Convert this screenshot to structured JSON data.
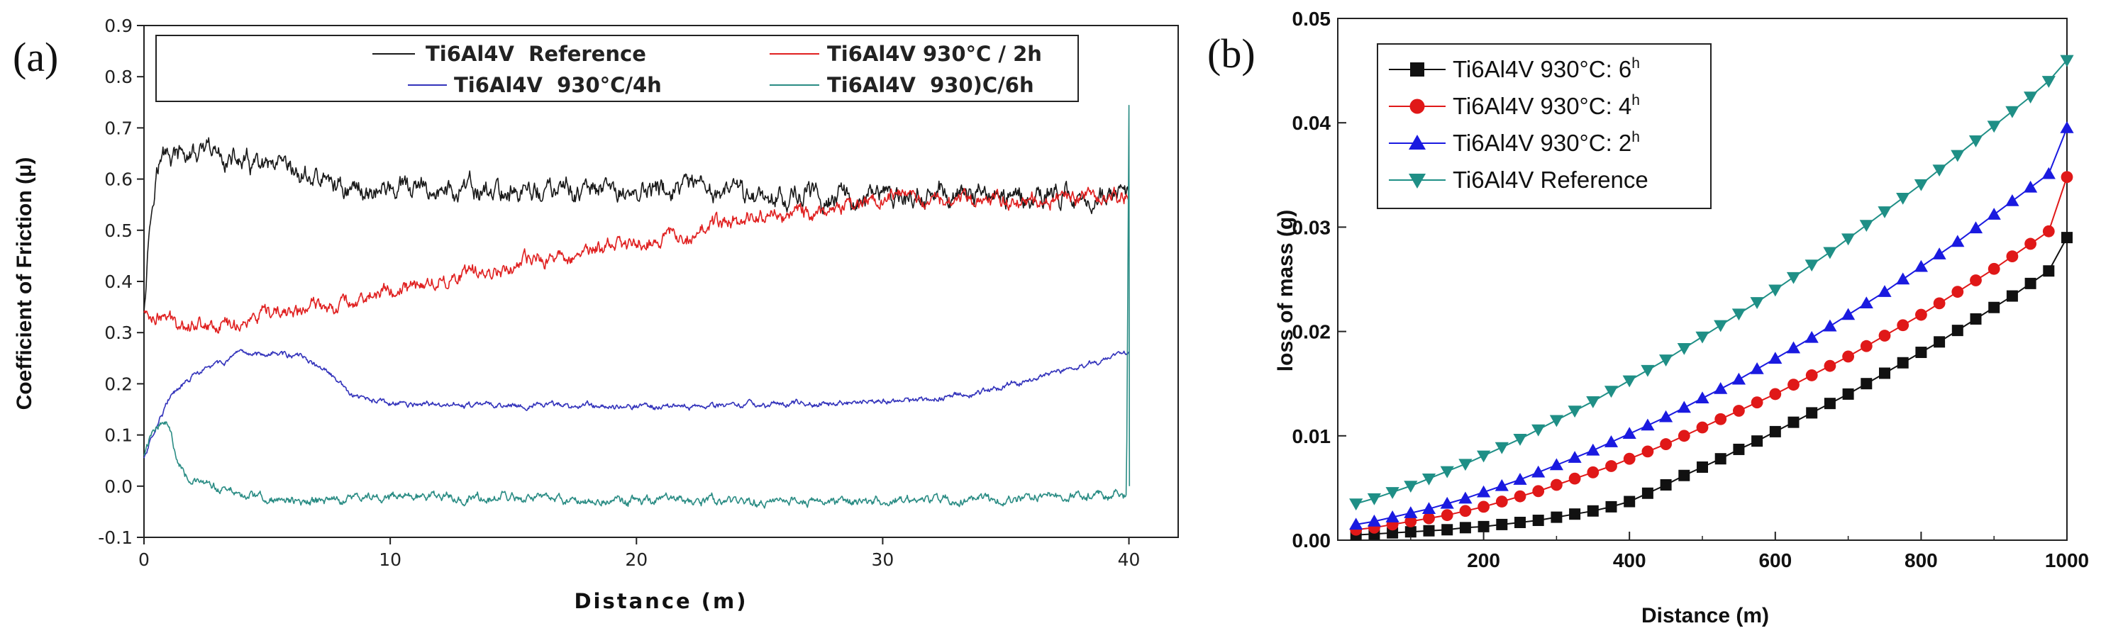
{
  "chart_data": [
    {
      "panel": "(a)",
      "type": "line",
      "title": "",
      "xlabel": "Distance (m)",
      "ylabel": "Coefficient of Friction (μ)",
      "xlim": [
        0,
        42
      ],
      "ylim": [
        -0.1,
        0.9
      ],
      "xticks": [
        0,
        10,
        20,
        30,
        40
      ],
      "xtick_labels": [
        "0",
        "10",
        "20",
        "30",
        "40"
      ],
      "yticks": [
        -0.1,
        0.0,
        0.1,
        0.2,
        0.3,
        0.4,
        0.5,
        0.6,
        0.7,
        0.8,
        0.9
      ],
      "ytick_labels": [
        "-0.1",
        "0.0",
        "0.1",
        "0.2",
        "0.3",
        "0.4",
        "0.5",
        "0.6",
        "0.7",
        "0.8",
        "0.9"
      ],
      "grid": false,
      "legend_position": "top",
      "series": [
        {
          "name": "Ti6Al4V  Reference",
          "color": "#1a1a1a",
          "noise": 0.013,
          "x": [
            0,
            0.2,
            0.5,
            0.8,
            1.2,
            2,
            3,
            4,
            5,
            6,
            7,
            8,
            9,
            10,
            12,
            15,
            18,
            20,
            22,
            25,
            28,
            30,
            32,
            35,
            38,
            40
          ],
          "y": [
            0.35,
            0.5,
            0.62,
            0.645,
            0.645,
            0.645,
            0.645,
            0.63,
            0.615,
            0.605,
            0.6,
            0.585,
            0.578,
            0.58,
            0.575,
            0.575,
            0.575,
            0.575,
            0.578,
            0.57,
            0.565,
            0.565,
            0.565,
            0.57,
            0.565,
            0.565
          ]
        },
        {
          "name": "Ti6Al4V 930°C / 2h",
          "color": "#e02020",
          "noise": 0.009,
          "x": [
            0,
            0.3,
            1,
            2,
            3,
            4,
            5,
            6,
            7,
            8,
            10,
            12,
            15,
            18,
            20,
            22,
            24,
            25,
            26,
            28,
            30,
            32,
            35,
            38,
            40
          ],
          "y": [
            0.34,
            0.335,
            0.325,
            0.32,
            0.315,
            0.32,
            0.33,
            0.34,
            0.35,
            0.36,
            0.38,
            0.4,
            0.43,
            0.46,
            0.475,
            0.495,
            0.52,
            0.53,
            0.53,
            0.545,
            0.56,
            0.565,
            0.56,
            0.565,
            0.565
          ]
        },
        {
          "name": "Ti6Al4V  930°C/4h",
          "color": "#3333bb",
          "noise": 0.0035,
          "x": [
            0,
            0.5,
            1,
            2,
            3,
            4,
            4.8,
            5.5,
            6.5,
            7.5,
            8.5,
            10,
            12,
            15,
            18,
            20,
            22,
            25,
            28,
            30,
            32,
            34,
            36,
            38,
            39.5,
            40
          ],
          "y": [
            0.055,
            0.12,
            0.17,
            0.215,
            0.24,
            0.255,
            0.262,
            0.26,
            0.25,
            0.22,
            0.175,
            0.16,
            0.158,
            0.158,
            0.158,
            0.157,
            0.157,
            0.16,
            0.162,
            0.165,
            0.17,
            0.185,
            0.21,
            0.235,
            0.255,
            0.26
          ]
        },
        {
          "name": "Ti6Al4V  930)C/6h",
          "color": "#2a8c84",
          "noise": 0.0055,
          "x": [
            0,
            0.3,
            0.7,
            1,
            1.3,
            1.8,
            2.5,
            3.5,
            5,
            6,
            7,
            8,
            10,
            12,
            15,
            18,
            20,
            25,
            30,
            35,
            38,
            39.9,
            40,
            40.02
          ],
          "y": [
            0.06,
            0.1,
            0.13,
            0.12,
            0.06,
            0.02,
            0.0,
            -0.01,
            -0.025,
            -0.03,
            -0.03,
            -0.025,
            -0.02,
            -0.022,
            -0.025,
            -0.028,
            -0.03,
            -0.03,
            -0.03,
            -0.025,
            -0.02,
            -0.015,
            0.75,
            0.0
          ]
        }
      ]
    },
    {
      "panel": "(b)",
      "type": "line",
      "title": "",
      "xlabel": "Distance (m)",
      "ylabel": "loss of mass (g)",
      "xlim": [
        0,
        1000
      ],
      "ylim": [
        0,
        0.05
      ],
      "xticks": [
        200,
        400,
        600,
        800,
        1000
      ],
      "xtick_labels": [
        "200",
        "400",
        "600",
        "800",
        "1000"
      ],
      "yticks": [
        0,
        0.01,
        0.02,
        0.03,
        0.04,
        0.05
      ],
      "ytick_labels": [
        "0.00",
        "0.01",
        "0.02",
        "0.03",
        "0.04",
        "0.05"
      ],
      "grid": false,
      "legend_position": "top-left",
      "x": [
        25,
        50,
        75,
        100,
        125,
        150,
        175,
        200,
        225,
        250,
        275,
        300,
        325,
        350,
        375,
        400,
        425,
        450,
        475,
        500,
        525,
        550,
        575,
        600,
        625,
        650,
        675,
        700,
        725,
        750,
        775,
        800,
        825,
        850,
        875,
        900,
        925,
        950,
        975,
        1000
      ],
      "series": [
        {
          "name": "Ti6Al4V 930°C: 6",
          "superscript": "h",
          "color": "#111111",
          "marker": "square",
          "values": [
            0.0005,
            0.0006,
            0.0007,
            0.0008,
            0.0009,
            0.001,
            0.0012,
            0.0013,
            0.0015,
            0.0017,
            0.0019,
            0.0022,
            0.0025,
            0.0028,
            0.0032,
            0.0037,
            0.0045,
            0.0053,
            0.0062,
            0.007,
            0.0078,
            0.0087,
            0.0095,
            0.0104,
            0.0113,
            0.0122,
            0.0131,
            0.014,
            0.015,
            0.016,
            0.017,
            0.018,
            0.019,
            0.0201,
            0.0212,
            0.0223,
            0.0234,
            0.0246,
            0.0258,
            0.029
          ]
        },
        {
          "name": "Ti6Al4V 930°C: 4",
          "superscript": "h",
          "color": "#e01818",
          "marker": "circle",
          "values": [
            0.001,
            0.0012,
            0.0015,
            0.0018,
            0.0021,
            0.0024,
            0.0028,
            0.0032,
            0.0037,
            0.0042,
            0.0047,
            0.0053,
            0.0059,
            0.0065,
            0.0071,
            0.0078,
            0.0085,
            0.0092,
            0.01,
            0.0108,
            0.0116,
            0.0124,
            0.0132,
            0.014,
            0.0149,
            0.0158,
            0.0167,
            0.0176,
            0.0186,
            0.0196,
            0.0206,
            0.0216,
            0.0227,
            0.0238,
            0.0249,
            0.026,
            0.0272,
            0.0284,
            0.0296,
            0.0348
          ]
        },
        {
          "name": "Ti6Al4V 930°C: 2",
          "superscript": "h",
          "color": "#1a1ae0",
          "marker": "triangle-up",
          "values": [
            0.0015,
            0.0018,
            0.0022,
            0.0026,
            0.003,
            0.0035,
            0.004,
            0.0046,
            0.0052,
            0.0058,
            0.0065,
            0.0072,
            0.0079,
            0.0086,
            0.0094,
            0.0102,
            0.011,
            0.0118,
            0.0127,
            0.0136,
            0.0145,
            0.0154,
            0.0164,
            0.0174,
            0.0184,
            0.0194,
            0.0205,
            0.0216,
            0.0227,
            0.0238,
            0.025,
            0.0262,
            0.0274,
            0.0286,
            0.0299,
            0.0312,
            0.0325,
            0.0338,
            0.0351,
            0.0395
          ]
        },
        {
          "name": "Ti6Al4V Reference",
          "superscript": "",
          "color": "#1f8f86",
          "marker": "triangle-down",
          "values": [
            0.0035,
            0.004,
            0.0046,
            0.0052,
            0.0059,
            0.0066,
            0.0073,
            0.0081,
            0.0089,
            0.0097,
            0.0106,
            0.0115,
            0.0124,
            0.0133,
            0.0143,
            0.0153,
            0.0163,
            0.0173,
            0.0184,
            0.0195,
            0.0206,
            0.0217,
            0.0228,
            0.024,
            0.0252,
            0.0264,
            0.0276,
            0.0289,
            0.0302,
            0.0315,
            0.0328,
            0.0341,
            0.0355,
            0.0369,
            0.0383,
            0.0397,
            0.0411,
            0.0425,
            0.044,
            0.046
          ]
        }
      ]
    }
  ]
}
